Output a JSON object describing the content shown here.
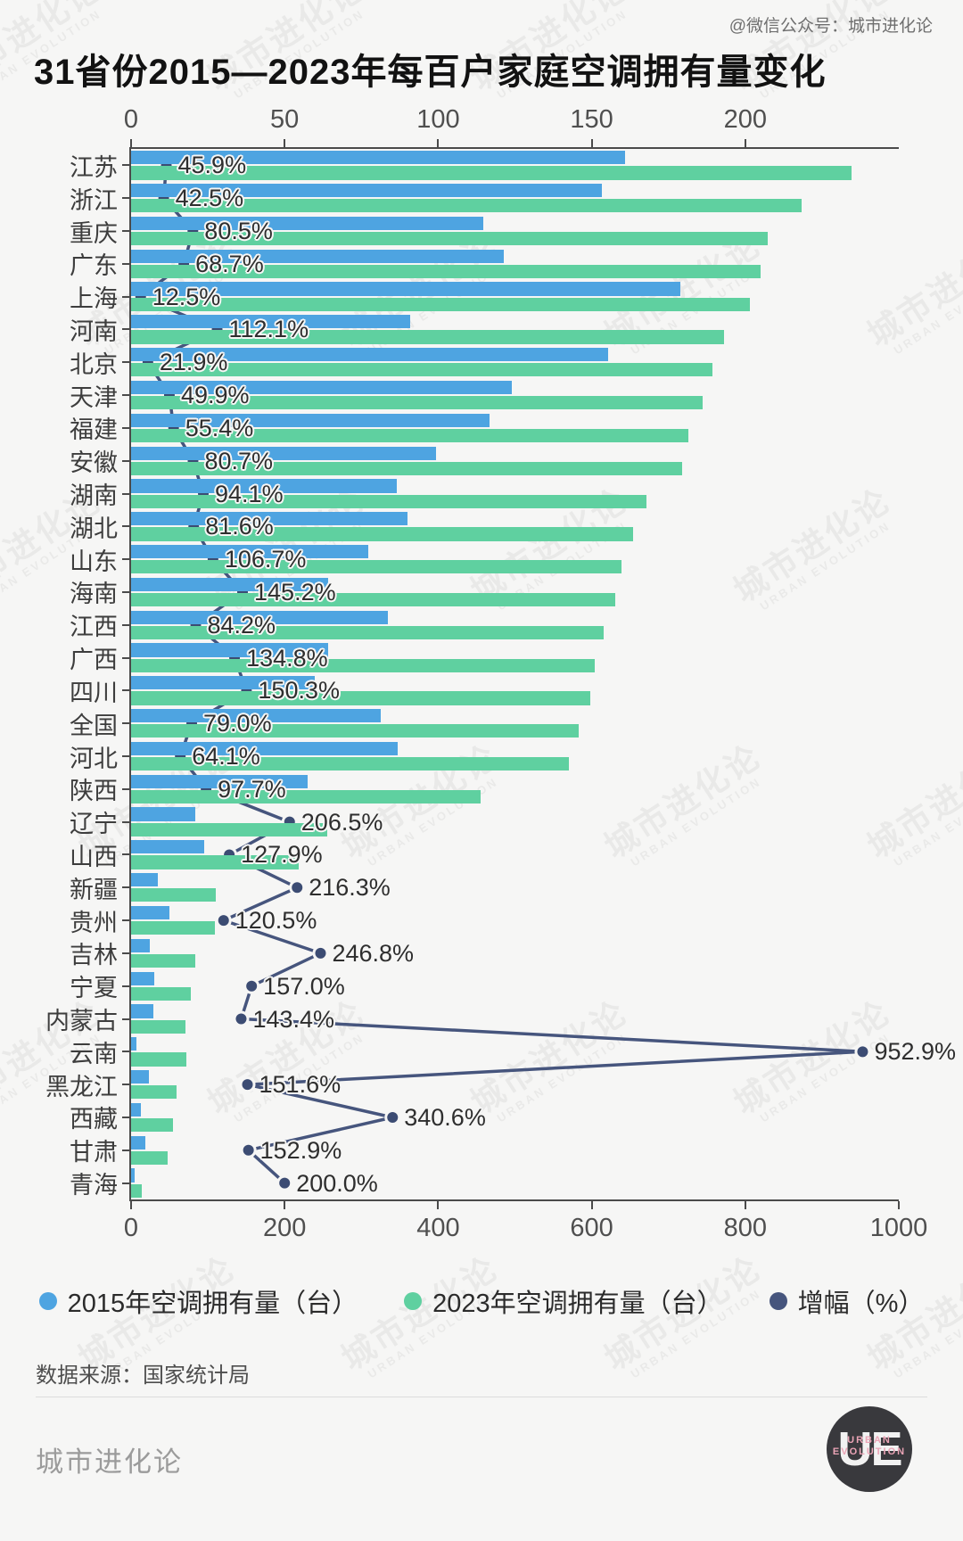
{
  "credit": "@微信公众号：城市进化论",
  "title": "31省份2015—2023年每百户家庭空调拥有量变化",
  "watermark": {
    "line1": "城市进化论",
    "line2": "URBAN EVOLUTION"
  },
  "chart_data": {
    "type": "bar",
    "orientation": "horizontal",
    "title": "31省份2015—2023年每百户家庭空调拥有量变化",
    "categories": [
      "江苏",
      "浙江",
      "重庆",
      "广东",
      "上海",
      "河南",
      "北京",
      "天津",
      "福建",
      "安徽",
      "湖南",
      "湖北",
      "山东",
      "海南",
      "江西",
      "广西",
      "四川",
      "全国",
      "河北",
      "陕西",
      "辽宁",
      "山西",
      "新疆",
      "贵州",
      "吉林",
      "宁夏",
      "内蒙古",
      "云南",
      "黑龙江",
      "西藏",
      "甘肃",
      "青海"
    ],
    "series": [
      {
        "name": "2015年空调拥有量（台）",
        "type": "bar",
        "color": "#4ea4e1",
        "values": [
          160.8,
          153.2,
          114.8,
          121.5,
          179.0,
          91.0,
          155.2,
          124.1,
          116.7,
          99.3,
          86.4,
          90.1,
          77.2,
          64.3,
          83.6,
          64.3,
          59.7,
          81.4,
          86.9,
          57.5,
          20.8,
          23.9,
          8.7,
          12.4,
          6.0,
          7.6,
          7.3,
          1.7,
          5.9,
          3.1,
          4.7,
          1.2
        ]
      },
      {
        "name": "2023年空调拥有量（台）",
        "type": "bar",
        "color": "#5fd0a0",
        "values": [
          234.6,
          218.3,
          207.2,
          205.0,
          201.4,
          193.0,
          189.2,
          186.0,
          181.4,
          179.4,
          167.7,
          163.6,
          159.6,
          157.7,
          154.0,
          151.0,
          149.4,
          145.7,
          142.6,
          113.7,
          63.8,
          54.5,
          27.5,
          27.3,
          20.8,
          19.5,
          17.8,
          17.9,
          14.8,
          13.7,
          11.9,
          3.6
        ]
      },
      {
        "name": "增幅（%）",
        "type": "line",
        "color": "#46557d",
        "dot_color": "#3c4c73",
        "values": [
          45.9,
          42.5,
          80.5,
          68.7,
          12.5,
          112.1,
          21.9,
          49.9,
          55.4,
          80.7,
          94.1,
          81.6,
          106.7,
          145.2,
          84.2,
          134.8,
          150.3,
          79.0,
          64.1,
          97.7,
          206.5,
          127.9,
          216.3,
          120.5,
          246.8,
          157.0,
          143.4,
          952.9,
          151.6,
          340.6,
          152.9,
          200.0
        ],
        "labels": [
          "45.9%",
          "42.5%",
          "80.5%",
          "68.7%",
          "12.5%",
          "112.1%",
          "21.9%",
          "49.9%",
          "55.4%",
          "80.7%",
          "94.1%",
          "81.6%",
          "106.7%",
          "145.2%",
          "84.2%",
          "134.8%",
          "150.3%",
          "79.0%",
          "64.1%",
          "97.7%",
          "206.5%",
          "127.9%",
          "216.3%",
          "120.5%",
          "246.8%",
          "157.0%",
          "143.4%",
          "952.9%",
          "151.6%",
          "340.6%",
          "152.9%",
          "200.0%"
        ]
      }
    ],
    "top_axis": {
      "ticks": [
        0,
        50,
        100,
        150,
        200
      ],
      "max": 250
    },
    "bottom_axis": {
      "ticks": [
        0,
        200,
        400,
        600,
        800,
        1000
      ],
      "max": 1000
    },
    "grid": false,
    "legend_position": "bottom"
  },
  "source": "数据来源：国家统计局",
  "footer": {
    "brand": "城市进化论",
    "logo": {
      "letters": "UE",
      "line1": "URBAN",
      "line2": "EVOLUTION"
    }
  }
}
